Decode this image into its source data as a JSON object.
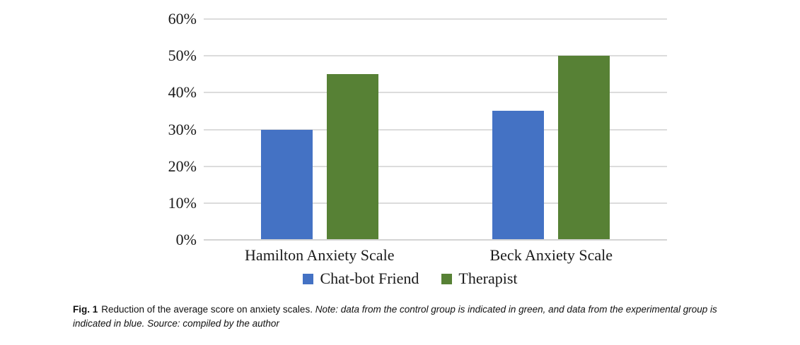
{
  "chart_data": {
    "type": "bar",
    "categories": [
      "Hamilton Anxiety Scale",
      "Beck Anxiety Scale"
    ],
    "series": [
      {
        "name": "Chat-bot Friend",
        "color": "#4472c4",
        "values": [
          30,
          35
        ]
      },
      {
        "name": "Therapist",
        "color": "#578135",
        "values": [
          45,
          50
        ]
      }
    ],
    "ylim": [
      0,
      60
    ],
    "yticks": [
      0,
      10,
      20,
      30,
      40,
      50,
      60
    ],
    "ytick_labels": [
      "0%",
      "10%",
      "20%",
      "30%",
      "40%",
      "50%",
      "60%"
    ],
    "grid": "horizontal",
    "legend_position": "bottom",
    "gridline_color": "#dcdcdc"
  },
  "caption": {
    "label": "Fig. 1",
    "text": "Reduction of the average score on anxiety scales.",
    "note": "Note: data from the control group is indicated in green, and data from the experimental group is indicated in blue. Source: compiled by the author"
  }
}
